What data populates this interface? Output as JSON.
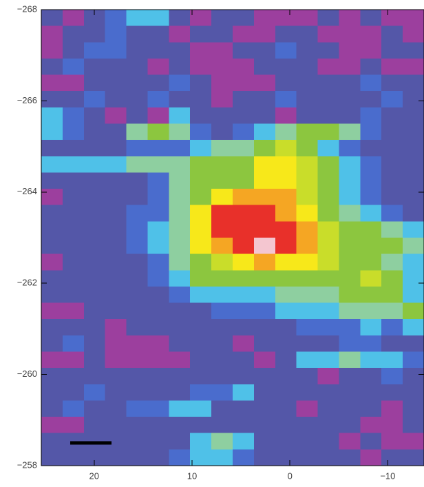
{
  "chart_data": {
    "type": "heatmap",
    "xlim": [
      25.4,
      -13.7
    ],
    "ylim": [
      -268,
      -258
    ],
    "xticks": [
      20,
      10,
      0,
      {
        "value": -10,
        "label": "−10"
      }
    ],
    "yticks": [
      {
        "value": -268,
        "label": "−268"
      },
      {
        "value": -266,
        "label": "−266"
      },
      {
        "value": -264,
        "label": "−264"
      },
      {
        "value": -262,
        "label": "−262"
      },
      {
        "value": -260,
        "label": "−260"
      },
      {
        "value": -258,
        "label": "−258"
      }
    ],
    "colormap": [
      "#9c3f9e",
      "#5457a8",
      "#4a6ccd",
      "#4fc1e8",
      "#8ecfa0",
      "#8cc63f",
      "#c9dd2a",
      "#f7e81a",
      "#f5a623",
      "#e8302a",
      "#f4c6d0"
    ],
    "z": [
      [
        1,
        0,
        1,
        2,
        3,
        3,
        1,
        0,
        1,
        1,
        0,
        0,
        0,
        1,
        0,
        1,
        0,
        0
      ],
      [
        0,
        1,
        1,
        2,
        1,
        1,
        0,
        1,
        1,
        0,
        0,
        1,
        1,
        0,
        0,
        0,
        1,
        0
      ],
      [
        0,
        1,
        2,
        2,
        1,
        1,
        1,
        0,
        0,
        1,
        1,
        2,
        1,
        1,
        0,
        0,
        1,
        1
      ],
      [
        1,
        2,
        1,
        1,
        1,
        0,
        1,
        0,
        0,
        0,
        1,
        1,
        1,
        0,
        0,
        1,
        0,
        0
      ],
      [
        0,
        0,
        1,
        1,
        1,
        1,
        2,
        1,
        0,
        0,
        0,
        1,
        1,
        1,
        1,
        2,
        1,
        1
      ],
      [
        1,
        1,
        2,
        1,
        1,
        2,
        1,
        1,
        0,
        1,
        1,
        2,
        1,
        1,
        1,
        1,
        2,
        1
      ],
      [
        3,
        2,
        1,
        0,
        1,
        0,
        3,
        1,
        1,
        1,
        1,
        0,
        1,
        1,
        1,
        2,
        1,
        1
      ],
      [
        3,
        2,
        1,
        1,
        4,
        5,
        4,
        2,
        1,
        2,
        3,
        4,
        5,
        5,
        4,
        2,
        1,
        1
      ],
      [
        1,
        1,
        1,
        1,
        2,
        2,
        2,
        3,
        4,
        4,
        5,
        6,
        5,
        3,
        2,
        1,
        1,
        1
      ],
      [
        3,
        3,
        3,
        3,
        4,
        4,
        4,
        5,
        5,
        5,
        7,
        7,
        6,
        5,
        3,
        2,
        1,
        1
      ],
      [
        1,
        1,
        1,
        1,
        1,
        2,
        4,
        5,
        5,
        5,
        7,
        7,
        6,
        5,
        3,
        2,
        1,
        1
      ],
      [
        0,
        1,
        1,
        1,
        1,
        2,
        4,
        5,
        7,
        8,
        8,
        8,
        6,
        5,
        3,
        2,
        1,
        1
      ],
      [
        1,
        1,
        1,
        1,
        2,
        2,
        4,
        7,
        9,
        9,
        9,
        8,
        7,
        5,
        4,
        3,
        2,
        1
      ],
      [
        1,
        1,
        1,
        1,
        2,
        3,
        4,
        7,
        9,
        9,
        9,
        9,
        8,
        6,
        5,
        5,
        4,
        3
      ],
      [
        1,
        1,
        1,
        1,
        2,
        3,
        4,
        7,
        8,
        9,
        10,
        9,
        8,
        6,
        5,
        5,
        5,
        4
      ],
      [
        0,
        1,
        1,
        1,
        1,
        2,
        4,
        5,
        6,
        7,
        8,
        7,
        7,
        6,
        5,
        5,
        4,
        3
      ],
      [
        1,
        1,
        1,
        1,
        1,
        2,
        3,
        5,
        5,
        5,
        5,
        5,
        5,
        5,
        5,
        6,
        5,
        3
      ],
      [
        1,
        1,
        1,
        1,
        1,
        1,
        2,
        3,
        3,
        3,
        3,
        4,
        4,
        4,
        5,
        5,
        5,
        3
      ],
      [
        0,
        0,
        1,
        1,
        1,
        1,
        1,
        1,
        2,
        2,
        2,
        3,
        3,
        3,
        4,
        4,
        4,
        5
      ],
      [
        1,
        1,
        1,
        0,
        1,
        1,
        1,
        1,
        1,
        1,
        1,
        1,
        2,
        2,
        2,
        3,
        2,
        3
      ],
      [
        1,
        2,
        1,
        0,
        0,
        0,
        1,
        1,
        1,
        0,
        1,
        1,
        1,
        1,
        2,
        2,
        1,
        1
      ],
      [
        0,
        0,
        1,
        0,
        0,
        0,
        0,
        1,
        1,
        1,
        0,
        1,
        3,
        3,
        4,
        3,
        3,
        2
      ],
      [
        1,
        1,
        1,
        1,
        1,
        1,
        1,
        1,
        1,
        1,
        1,
        1,
        1,
        0,
        1,
        1,
        2,
        1
      ],
      [
        1,
        1,
        2,
        1,
        1,
        1,
        1,
        2,
        2,
        3,
        1,
        1,
        1,
        1,
        1,
        1,
        1,
        1
      ],
      [
        1,
        2,
        1,
        1,
        2,
        2,
        3,
        3,
        1,
        1,
        1,
        1,
        0,
        1,
        1,
        1,
        0,
        1
      ],
      [
        0,
        0,
        1,
        1,
        1,
        1,
        1,
        1,
        1,
        1,
        1,
        1,
        1,
        1,
        1,
        0,
        0,
        1
      ],
      [
        1,
        1,
        1,
        1,
        1,
        1,
        1,
        3,
        4,
        3,
        1,
        1,
        1,
        1,
        0,
        1,
        0,
        0
      ],
      [
        1,
        1,
        1,
        1,
        1,
        1,
        2,
        3,
        3,
        2,
        1,
        1,
        1,
        1,
        1,
        0,
        1,
        1
      ]
    ]
  }
}
